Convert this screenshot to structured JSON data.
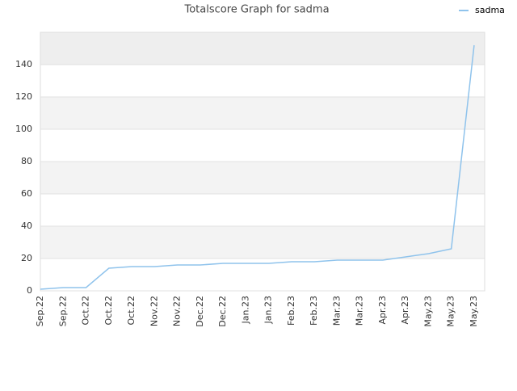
{
  "chart_data": {
    "type": "line",
    "title": "Totalscore Graph for sadma",
    "categories": [
      "Sep.22",
      "Sep.22",
      "Oct.22",
      "Oct.22",
      "Oct.22",
      "Nov.22",
      "Nov.22",
      "Dec.22",
      "Dec.22",
      "Jan.23",
      "Jan.23",
      "Feb.23",
      "Feb.23",
      "Mar.23",
      "Mar.23",
      "Apr.23",
      "Apr.23",
      "May.23",
      "May.23",
      "May.23"
    ],
    "series": [
      {
        "name": "sadma",
        "color": "#8fc3ec",
        "values": [
          1,
          2,
          2,
          14,
          15,
          15,
          16,
          16,
          17,
          17,
          17,
          18,
          18,
          19,
          19,
          19,
          21,
          23,
          26,
          152
        ]
      }
    ],
    "ylim": [
      0,
      160
    ],
    "yticks": [
      0,
      20,
      40,
      60,
      80,
      100,
      120,
      140
    ],
    "grid": true,
    "legend": "top-right"
  }
}
